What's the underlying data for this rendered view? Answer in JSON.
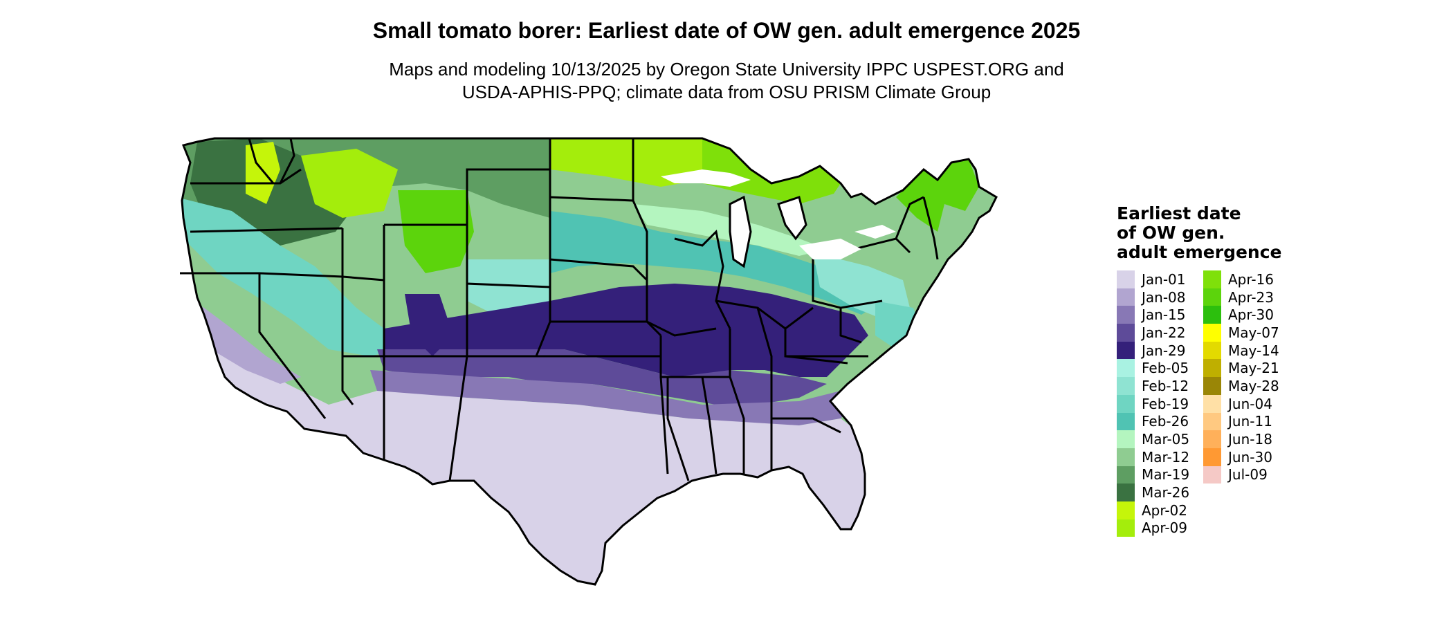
{
  "header": {
    "title": "Small tomato borer: Earliest date of OW gen. adult emergence 2025",
    "subtitle_line1": "Maps and modeling 10/13/2025 by Oregon State University IPPC USPEST.ORG and",
    "subtitle_line2": "USDA-APHIS-PPQ; climate data from OSU PRISM Climate Group"
  },
  "legend": {
    "title_line1": "Earliest date",
    "title_line2": "of OW gen.",
    "title_line3": "adult emergence",
    "items": [
      {
        "label": "Jan-01",
        "color": "#d8d2e8"
      },
      {
        "label": "Jan-08",
        "color": "#b1a5d0"
      },
      {
        "label": "Jan-15",
        "color": "#8878b5"
      },
      {
        "label": "Jan-22",
        "color": "#5e4b99"
      },
      {
        "label": "Jan-29",
        "color": "#34207a"
      },
      {
        "label": "Feb-05",
        "color": "#a9f2e2"
      },
      {
        "label": "Feb-12",
        "color": "#8fe3d2"
      },
      {
        "label": "Feb-19",
        "color": "#6fd5c2"
      },
      {
        "label": "Feb-26",
        "color": "#50c3b3"
      },
      {
        "label": "Mar-05",
        "color": "#b4f5bf"
      },
      {
        "label": "Mar-12",
        "color": "#8fcc91"
      },
      {
        "label": "Mar-19",
        "color": "#5e9e62"
      },
      {
        "label": "Mar-26",
        "color": "#3a7241"
      },
      {
        "label": "Apr-02",
        "color": "#c5f50a"
      },
      {
        "label": "Apr-09",
        "color": "#a4ed0c"
      },
      {
        "label": "Apr-16",
        "color": "#7fe00a"
      },
      {
        "label": "Apr-23",
        "color": "#5cd40c"
      },
      {
        "label": "Apr-30",
        "color": "#2cbf0d"
      },
      {
        "label": "May-07",
        "color": "#ffff00"
      },
      {
        "label": "May-14",
        "color": "#e3da00"
      },
      {
        "label": "May-21",
        "color": "#bfaf00"
      },
      {
        "label": "May-28",
        "color": "#9a8606"
      },
      {
        "label": "Jun-04",
        "color": "#ffe0a6"
      },
      {
        "label": "Jun-11",
        "color": "#ffc981"
      },
      {
        "label": "Jun-18",
        "color": "#ffb05a"
      },
      {
        "label": "Jun-30",
        "color": "#ff9933"
      },
      {
        "label": "Jul-09",
        "color": "#f5c9c6"
      }
    ]
  }
}
